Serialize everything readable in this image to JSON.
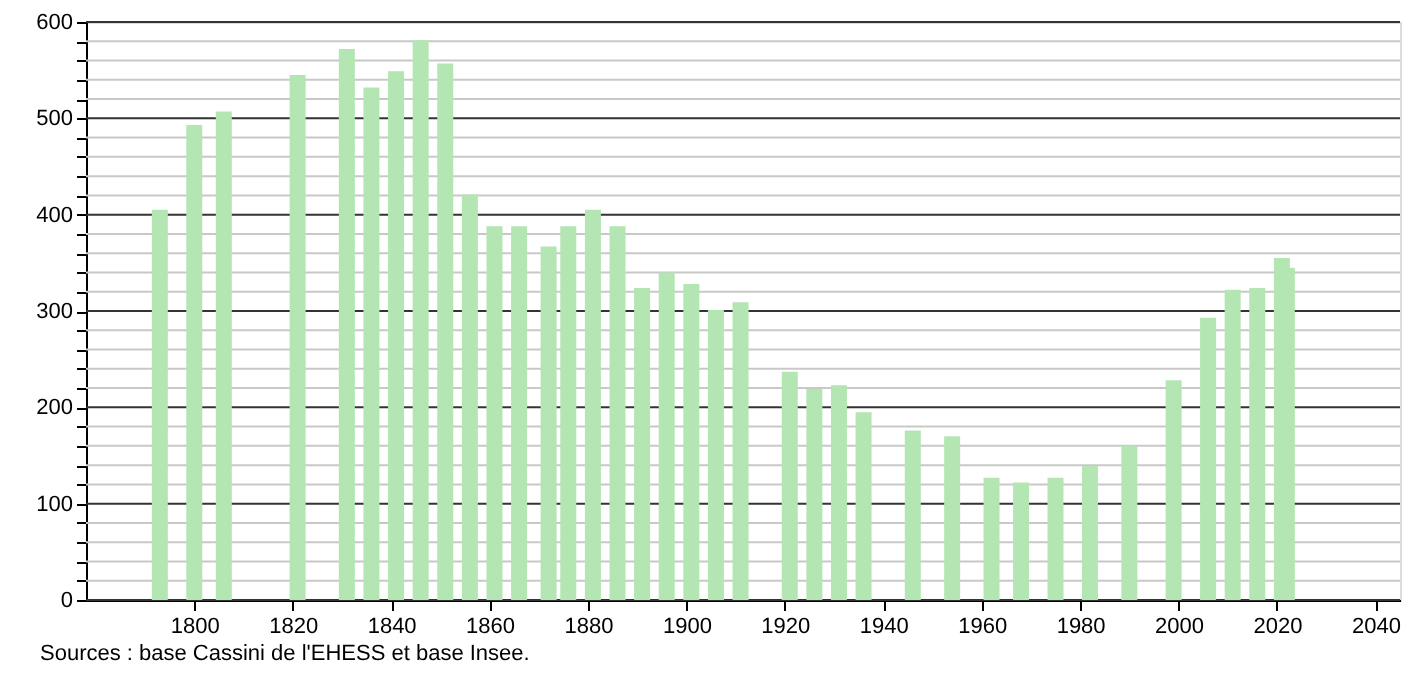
{
  "chart_data": {
    "type": "bar",
    "color": "#b3e6b3",
    "x": [
      1793,
      1800,
      1806,
      1821,
      1831,
      1836,
      1841,
      1846,
      1851,
      1856,
      1861,
      1866,
      1872,
      1876,
      1881,
      1886,
      1891,
      1896,
      1901,
      1906,
      1911,
      1921,
      1926,
      1931,
      1936,
      1946,
      1954,
      1962,
      1968,
      1975,
      1982,
      1990,
      1999,
      2006,
      2011,
      2016,
      2021,
      2022
    ],
    "values": [
      405,
      493,
      507,
      545,
      572,
      532,
      549,
      581,
      557,
      421,
      388,
      388,
      367,
      388,
      405,
      388,
      324,
      340,
      328,
      301,
      309,
      237,
      219,
      223,
      195,
      176,
      170,
      127,
      122,
      127,
      139,
      160,
      228,
      293,
      322,
      324,
      355,
      345
    ],
    "xlim": [
      1778,
      2045
    ],
    "xticks": [
      1800,
      1820,
      1840,
      1860,
      1880,
      1900,
      1920,
      1940,
      1960,
      1980,
      2000,
      2020,
      2040
    ],
    "ylim": [
      0,
      600
    ],
    "yticks": [
      0,
      {
        "value": 20,
        "label": null
      },
      {
        "value": 40,
        "label": null
      },
      {
        "value": 60,
        "label": null
      },
      {
        "value": 80,
        "label": null
      },
      100,
      {
        "value": 120,
        "label": null
      },
      {
        "value": 140,
        "label": null
      },
      {
        "value": 160,
        "label": null
      },
      {
        "value": 180,
        "label": null
      },
      200,
      {
        "value": 220,
        "label": null
      },
      {
        "value": 240,
        "label": null
      },
      {
        "value": 260,
        "label": null
      },
      {
        "value": 280,
        "label": null
      },
      300,
      {
        "value": 320,
        "label": null
      },
      {
        "value": 340,
        "label": null
      },
      {
        "value": 360,
        "label": null
      },
      {
        "value": 380,
        "label": null
      },
      400,
      {
        "value": 420,
        "label": null
      },
      {
        "value": 440,
        "label": null
      },
      {
        "value": 460,
        "label": null
      },
      {
        "value": 480,
        "label": null
      },
      500,
      {
        "value": 520,
        "label": null
      },
      {
        "value": 540,
        "label": null
      },
      {
        "value": 560,
        "label": null
      },
      {
        "value": 580,
        "label": null
      },
      600
    ],
    "grid": "y",
    "annotations": [
      "Sources : base Cassini de l'EHESS et base Insee."
    ]
  }
}
